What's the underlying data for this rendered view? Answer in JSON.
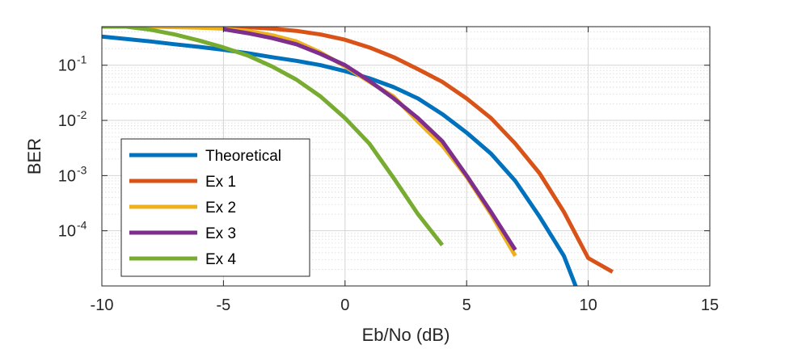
{
  "chart_data": {
    "type": "line",
    "title": "",
    "xlabel": "Eb/No (dB)",
    "ylabel": "BER",
    "x_scale": "linear",
    "y_scale": "log",
    "xlim": [
      -10,
      15
    ],
    "ylim": [
      1e-05,
      0.5
    ],
    "x_ticks": [
      -10,
      -5,
      0,
      5,
      10,
      15
    ],
    "x_tick_labels": [
      "-10",
      "-5",
      "0",
      "5",
      "10",
      "15"
    ],
    "y_ticks": [
      0.0001,
      0.001,
      0.01,
      0.1
    ],
    "y_tick_labels": [
      {
        "base": "10",
        "exp": "-4"
      },
      {
        "base": "10",
        "exp": "-3"
      },
      {
        "base": "10",
        "exp": "-2"
      },
      {
        "base": "10",
        "exp": "-1"
      }
    ],
    "grid": true,
    "minor_grid": true,
    "legend_position": "bottom-left",
    "series": [
      {
        "name": "Theoretical",
        "color": "#0072BD",
        "x": [
          -10,
          -9,
          -8,
          -7,
          -6,
          -5,
          -4,
          -3,
          -2,
          -1,
          0,
          1,
          2,
          3,
          4,
          5,
          6,
          7,
          8,
          9,
          9.5
        ],
        "y": [
          0.33,
          0.3,
          0.27,
          0.24,
          0.215,
          0.19,
          0.165,
          0.14,
          0.12,
          0.1,
          0.078,
          0.058,
          0.04,
          0.025,
          0.013,
          0.006,
          0.0025,
          0.0008,
          0.00018,
          3.5e-05,
          9.5e-06
        ]
      },
      {
        "name": "Ex 1",
        "color": "#D95319",
        "x": [
          -5,
          -4,
          -3,
          -2,
          -1,
          0,
          1,
          2,
          3,
          4,
          5,
          6,
          7,
          8,
          9,
          10,
          11
        ],
        "y": [
          0.5,
          0.49,
          0.46,
          0.42,
          0.36,
          0.29,
          0.21,
          0.14,
          0.085,
          0.05,
          0.025,
          0.011,
          0.0038,
          0.0011,
          0.00022,
          3.2e-05,
          1.8e-05
        ]
      },
      {
        "name": "Ex 2",
        "color": "#EDB120",
        "x": [
          -10,
          -9,
          -8,
          -7,
          -6,
          -5,
          -4,
          -3,
          -2,
          -1,
          0,
          1,
          2,
          3,
          4,
          5,
          6,
          7
        ],
        "y": [
          0.5,
          0.5,
          0.5,
          0.49,
          0.48,
          0.46,
          0.42,
          0.35,
          0.27,
          0.17,
          0.095,
          0.05,
          0.027,
          0.0095,
          0.0035,
          0.00095,
          0.0002,
          3.5e-05
        ]
      },
      {
        "name": "Ex 3",
        "color": "#7E2F8E",
        "x": [
          -5,
          -4,
          -3,
          -2,
          -1,
          0,
          1,
          2,
          3,
          4,
          5,
          6,
          7
        ],
        "y": [
          0.45,
          0.38,
          0.31,
          0.24,
          0.16,
          0.1,
          0.052,
          0.025,
          0.011,
          0.0042,
          0.001,
          0.00022,
          4.5e-05
        ]
      },
      {
        "name": "Ex 4",
        "color": "#77AC30",
        "x": [
          -10,
          -9,
          -8,
          -7,
          -6,
          -5,
          -4,
          -3,
          -2,
          -1,
          0,
          1,
          2,
          3,
          4
        ],
        "y": [
          0.5,
          0.5,
          0.44,
          0.36,
          0.28,
          0.21,
          0.15,
          0.095,
          0.055,
          0.027,
          0.011,
          0.0038,
          0.0009,
          0.0002,
          5.5e-05
        ]
      }
    ]
  }
}
